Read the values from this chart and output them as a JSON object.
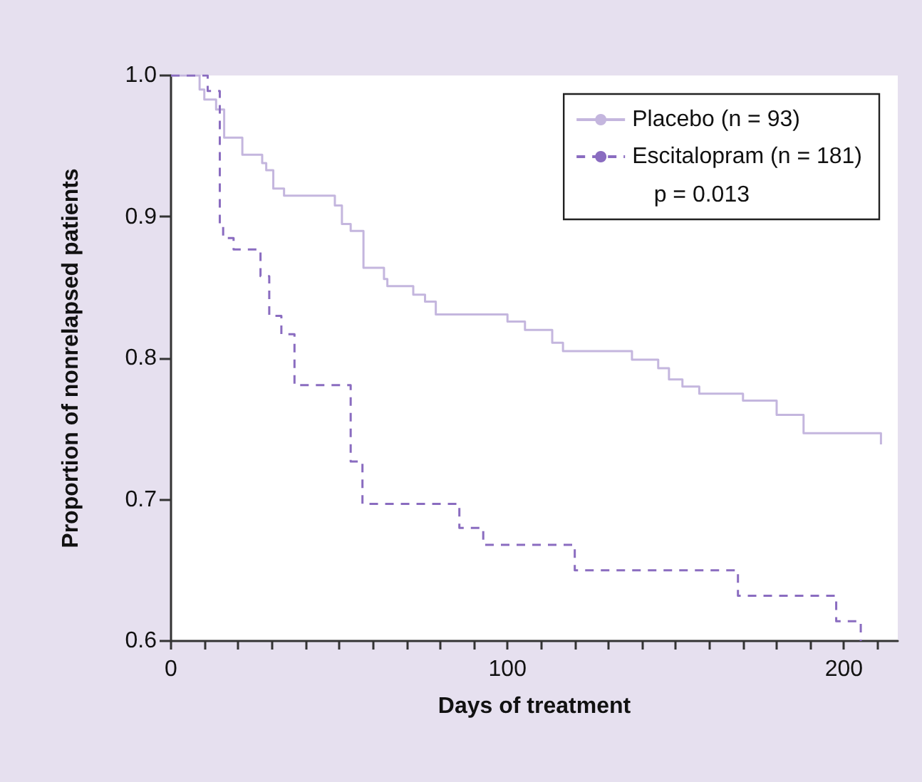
{
  "chart_data": {
    "type": "step",
    "xlabel": "Days of treatment",
    "ylabel": "Proportion of nonrelapsed patients",
    "annotations": [
      "p = 0.013"
    ],
    "xlim": [
      0,
      216
    ],
    "xticks": [
      0,
      {
        "value": 10,
        "label": null
      },
      {
        "value": 20,
        "label": null
      },
      {
        "value": 30,
        "label": null
      },
      {
        "value": 40,
        "label": null
      },
      {
        "value": 50,
        "label": null
      },
      {
        "value": 60,
        "label": null
      },
      {
        "value": 70,
        "label": null
      },
      {
        "value": 80,
        "label": null
      },
      {
        "value": 90,
        "label": null
      },
      100,
      {
        "value": 110,
        "label": null
      },
      {
        "value": 120,
        "label": null
      },
      {
        "value": 130,
        "label": null
      },
      {
        "value": 140,
        "label": null
      },
      {
        "value": 150,
        "label": null
      },
      {
        "value": 160,
        "label": null
      },
      {
        "value": 170,
        "label": null
      },
      {
        "value": 180,
        "label": null
      },
      {
        "value": 190,
        "label": null
      },
      200,
      {
        "value": 210,
        "label": null
      }
    ],
    "ylim": [
      0.6,
      1.0
    ],
    "yticks": [
      0.6,
      0.7,
      0.8,
      0.9,
      {
        "value": 1.0,
        "label": "1.0"
      }
    ],
    "legend": "top right",
    "grid": false,
    "marker": "none",
    "series": [
      {
        "name": "Placebo (n = 93)",
        "color": "#c4b6de",
        "line_style": "solid",
        "x": [
          0,
          8.5,
          9.9,
          13.4,
          15.8,
          21.2,
          27.1,
          28.3,
          30.4,
          33.6,
          48.7,
          50.8,
          53.4,
          57.2,
          63.3,
          64.3,
          72,
          75.5,
          78.7,
          100,
          105.2,
          113.3,
          116.5,
          137,
          144.8,
          148,
          152,
          157,
          170,
          180,
          188,
          211
        ],
        "values": [
          1.0,
          0.99,
          0.983,
          0.976,
          0.956,
          0.944,
          0.938,
          0.933,
          0.92,
          0.915,
          0.908,
          0.895,
          0.89,
          0.864,
          0.856,
          0.851,
          0.845,
          0.84,
          0.831,
          0.826,
          0.82,
          0.811,
          0.805,
          0.799,
          0.793,
          0.785,
          0.78,
          0.775,
          0.77,
          0.76,
          0.747,
          0.739
        ]
      },
      {
        "name": "Escitalopram (n = 181)",
        "color": "#8a6cc0",
        "line_style": "dashed",
        "x": [
          0,
          10.9,
          14.5,
          15.5,
          18.6,
          26.6,
          29.2,
          32.8,
          36.7,
          53.4,
          56.9,
          85.7,
          92.8,
          97,
          120,
          168.5,
          197.7,
          205
        ],
        "values": [
          1.0,
          0.989,
          0.893,
          0.885,
          0.877,
          0.858,
          0.83,
          0.817,
          0.781,
          0.727,
          0.697,
          0.68,
          0.668,
          0.668,
          0.65,
          0.632,
          0.614,
          0.6
        ]
      }
    ]
  }
}
